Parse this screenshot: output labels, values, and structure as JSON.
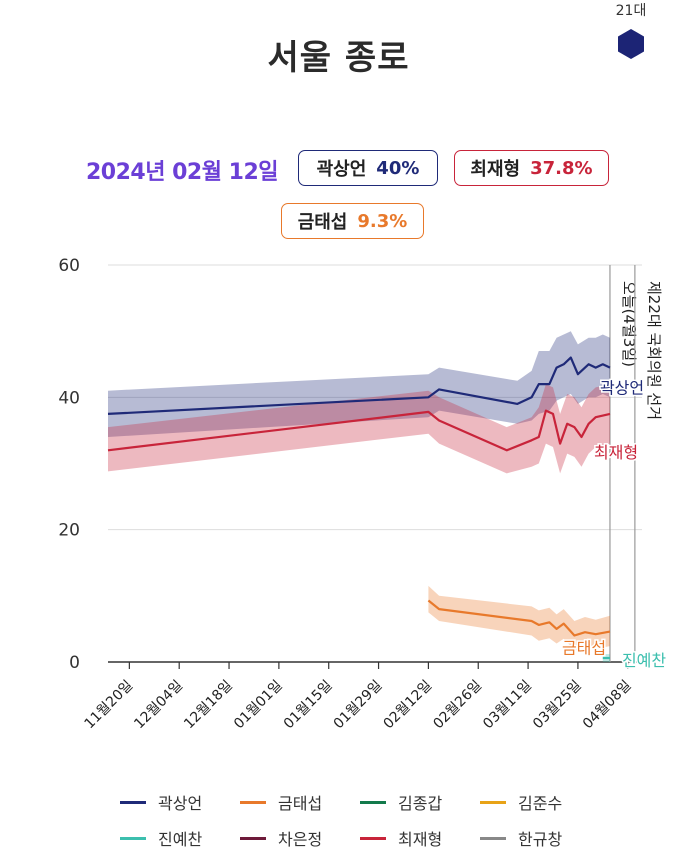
{
  "title": "서울 종로",
  "era_label": "21대",
  "date_label": "2024년 02월 12일",
  "badges": [
    {
      "name": "곽상언",
      "value": "40%"
    },
    {
      "name": "최재형",
      "value": "37.8%"
    },
    {
      "name": "금태섭",
      "value": "9.3%"
    }
  ],
  "colors": {
    "kwak": "#1f2a78",
    "choi": "#c8243a",
    "geum": "#e8792b",
    "jin": "#3cbfae",
    "kimjonggap": "#137a4c",
    "kimjunsu": "#e8a317",
    "cha": "#6e1a3a",
    "han": "#888888",
    "date": "#6b3fd6"
  },
  "chart_data": {
    "type": "line",
    "title": "서울 종로",
    "ylim": [
      0,
      60
    ],
    "yticks": [
      0,
      20,
      40,
      60
    ],
    "xlim": [
      "2023-11-14",
      "2024-04-12"
    ],
    "x_ticks": [
      {
        "date": "2023-11-20",
        "label": "11월20일"
      },
      {
        "date": "2023-12-04",
        "label": "12월04일"
      },
      {
        "date": "2023-12-18",
        "label": "12월18일"
      },
      {
        "date": "2024-01-01",
        "label": "01월01일"
      },
      {
        "date": "2024-01-15",
        "label": "01월15일"
      },
      {
        "date": "2024-01-29",
        "label": "01월29일"
      },
      {
        "date": "2024-02-12",
        "label": "02월12일"
      },
      {
        "date": "2024-02-26",
        "label": "02월26일"
      },
      {
        "date": "2024-03-11",
        "label": "03월11일"
      },
      {
        "date": "2024-03-25",
        "label": "03월25일"
      },
      {
        "date": "2024-04-08",
        "label": "04월08일"
      }
    ],
    "vlines": [
      {
        "date": "2024-04-03",
        "label": "오늘(4월3일)"
      },
      {
        "date": "2024-04-10",
        "label": "제22대 국회의원 선거"
      }
    ],
    "series": [
      {
        "name": "곽상언",
        "key": "kwak",
        "x": [
          "2023-11-14",
          "2024-02-12",
          "2024-02-15",
          "2024-03-08",
          "2024-03-12",
          "2024-03-14",
          "2024-03-17",
          "2024-03-19",
          "2024-03-21",
          "2024-03-23",
          "2024-03-25",
          "2024-03-28",
          "2024-03-30",
          "2024-04-01",
          "2024-04-03"
        ],
        "y": [
          37.5,
          40.0,
          41.2,
          39.0,
          40.0,
          42.0,
          42.0,
          44.5,
          45.0,
          46.0,
          43.5,
          45.0,
          44.5,
          45.0,
          44.5
        ],
        "lower": [
          34.0,
          37.0,
          38.0,
          36.0,
          36.5,
          37.5,
          38.0,
          39.5,
          40.0,
          40.5,
          39.0,
          40.0,
          40.0,
          40.5,
          40.0
        ],
        "upper": [
          41.0,
          43.5,
          44.5,
          42.5,
          44.0,
          47.0,
          47.0,
          49.0,
          49.5,
          50.0,
          48.0,
          49.0,
          49.0,
          49.5,
          49.0
        ],
        "end_label": "곽상언"
      },
      {
        "name": "최재형",
        "key": "choi",
        "x": [
          "2023-11-14",
          "2024-02-12",
          "2024-02-15",
          "2024-03-05",
          "2024-03-12",
          "2024-03-14",
          "2024-03-16",
          "2024-03-18",
          "2024-03-20",
          "2024-03-22",
          "2024-03-24",
          "2024-03-26",
          "2024-03-28",
          "2024-03-30",
          "2024-04-03"
        ],
        "y": [
          32.0,
          37.8,
          36.5,
          32.0,
          33.5,
          34.0,
          38.0,
          37.5,
          33.0,
          36.0,
          35.5,
          34.0,
          36.0,
          37.0,
          37.5
        ],
        "lower": [
          28.8,
          34.5,
          33.0,
          28.5,
          29.5,
          30.0,
          33.0,
          32.5,
          28.5,
          31.5,
          31.0,
          29.5,
          31.5,
          32.5,
          33.0
        ],
        "upper": [
          35.5,
          41.0,
          40.0,
          35.5,
          37.0,
          38.5,
          42.0,
          41.5,
          37.5,
          40.5,
          40.0,
          38.5,
          40.5,
          41.5,
          42.0
        ],
        "end_label": "최재형"
      },
      {
        "name": "금태섭",
        "key": "geum",
        "x": [
          "2024-02-12",
          "2024-02-15",
          "2024-03-12",
          "2024-03-14",
          "2024-03-17",
          "2024-03-19",
          "2024-03-21",
          "2024-03-24",
          "2024-03-27",
          "2024-03-30",
          "2024-04-03"
        ],
        "y": [
          9.3,
          8.0,
          6.2,
          5.6,
          6.0,
          5.0,
          5.8,
          4.0,
          4.5,
          4.2,
          4.6
        ],
        "lower": [
          7.5,
          6.2,
          4.0,
          3.2,
          3.6,
          2.8,
          3.5,
          1.8,
          2.2,
          2.0,
          2.4
        ],
        "upper": [
          11.5,
          10.0,
          8.4,
          7.8,
          8.2,
          7.2,
          8.0,
          6.2,
          6.8,
          6.4,
          7.0
        ],
        "end_label": "금태섭"
      },
      {
        "name": "진예찬",
        "key": "jin",
        "x": [
          "2024-04-01",
          "2024-04-03"
        ],
        "y": [
          0.6,
          0.6
        ],
        "lower": [
          0,
          0
        ],
        "upper": [
          1.2,
          1.2
        ],
        "end_label": "진예찬"
      }
    ]
  },
  "legend": [
    {
      "name": "곽상언",
      "key": "kwak"
    },
    {
      "name": "금태섭",
      "key": "geum"
    },
    {
      "name": "김종갑",
      "key": "kimjonggap"
    },
    {
      "name": "김준수",
      "key": "kimjunsu"
    },
    {
      "name": "진예찬",
      "key": "jin"
    },
    {
      "name": "차은정",
      "key": "cha"
    },
    {
      "name": "최재형",
      "key": "choi"
    },
    {
      "name": "한규창",
      "key": "han"
    }
  ]
}
